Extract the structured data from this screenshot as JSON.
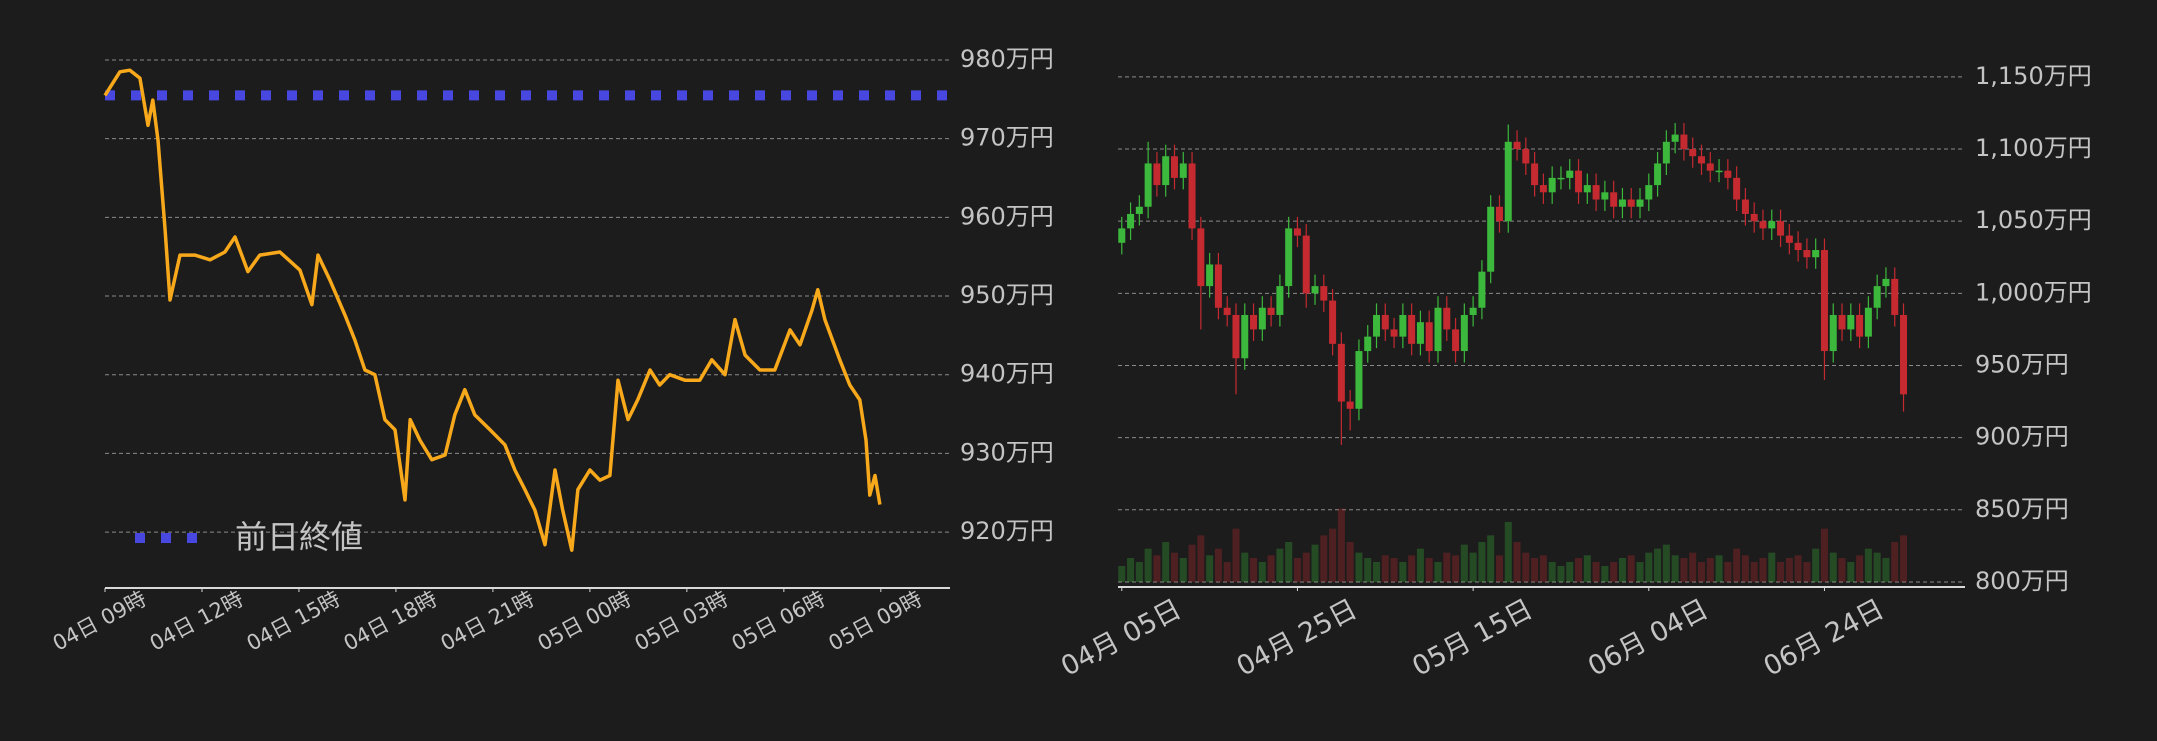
{
  "chart_data": [
    {
      "type": "line",
      "color": "#f7a81b",
      "x": [
        0,
        0.46,
        0.77,
        1.08,
        1.33,
        1.48,
        1.64,
        1.86,
        2.01,
        2.32,
        2.78,
        3.25,
        3.71,
        4.02,
        4.42,
        4.79,
        5.41,
        6.03,
        6.4,
        6.59,
        6.96,
        7.42,
        7.73,
        8.04,
        8.35,
        8.66,
        8.97,
        9.28,
        9.44,
        9.74,
        10.11,
        10.52,
        10.82,
        11.13,
        11.44,
        11.91,
        12.37,
        12.68,
        12.99,
        13.3,
        13.61,
        13.92,
        14.16,
        14.44,
        14.63,
        15,
        15.31,
        15.62,
        15.87,
        16.18,
        16.48,
        16.86,
        17.16,
        17.47,
        17.94,
        18.4,
        18.77,
        19.18,
        19.49,
        19.8,
        20.26,
        20.72,
        21.19,
        21.5,
        21.87,
        22.05,
        22.27,
        22.73,
        23.04,
        23.35,
        23.54,
        23.66,
        23.82,
        23.97
      ],
      "values": [
        975.5,
        978.5,
        978.7,
        977.7,
        971.7,
        974.9,
        969.8,
        958.4,
        949.5,
        955.2,
        955.2,
        954.6,
        955.6,
        957.5,
        953.1,
        955.2,
        955.6,
        953.3,
        948.9,
        955.2,
        952,
        947.6,
        944.4,
        940.6,
        940,
        934.3,
        933,
        924.1,
        934.3,
        931.7,
        929.2,
        929.8,
        934.9,
        938.1,
        934.9,
        933,
        931.1,
        927.9,
        925.4,
        922.8,
        918.4,
        927.9,
        922.8,
        917.7,
        925.4,
        927.9,
        926.6,
        927.2,
        939.3,
        934.3,
        936.8,
        940.6,
        938.7,
        940,
        939.3,
        939.3,
        941.9,
        940,
        947,
        942.5,
        940.6,
        940.6,
        945.7,
        943.8,
        948.2,
        950.8,
        947,
        941.9,
        938.7,
        936.8,
        931.7,
        924.7,
        927.2,
        923.5
      ],
      "reference": {
        "label": "前日終値",
        "value": 975.5,
        "color": "#4848e0"
      },
      "xlim": [
        0,
        26.14
      ],
      "xticks": [
        {
          "value": 0,
          "label": "04日 09時"
        },
        {
          "value": 3,
          "label": "04日 12時"
        },
        {
          "value": 6,
          "label": "04日 15時"
        },
        {
          "value": 9,
          "label": "04日 18時"
        },
        {
          "value": 12,
          "label": "04日 21時"
        },
        {
          "value": 15,
          "label": "05日 00時"
        },
        {
          "value": 18,
          "label": "05日 03時"
        },
        {
          "value": 21,
          "label": "05日 06時"
        },
        {
          "value": 24,
          "label": "05日 09時"
        }
      ],
      "ylim": [
        912.9,
        981.9
      ],
      "yticks": [
        {
          "value": 920,
          "label": "920万円"
        },
        {
          "value": 930,
          "label": "930万円"
        },
        {
          "value": 940,
          "label": "940万円"
        },
        {
          "value": 950,
          "label": "950万円"
        },
        {
          "value": 960,
          "label": "960万円"
        },
        {
          "value": 970,
          "label": "970万円"
        },
        {
          "value": 980,
          "label": "980万円"
        }
      ],
      "grid": true
    },
    {
      "type": "candlestick",
      "up_color": "#3cb83c",
      "down_color": "#c42a30",
      "x": [
        "04-05",
        "04-06",
        "04-07",
        "04-08",
        "04-09",
        "04-10",
        "04-11",
        "04-12",
        "04-13",
        "04-14",
        "04-15",
        "04-16",
        "04-17",
        "04-18",
        "04-19",
        "04-20",
        "04-21",
        "04-22",
        "04-23",
        "04-24",
        "04-25",
        "04-26",
        "04-27",
        "04-28",
        "04-29",
        "04-30",
        "05-01",
        "05-02",
        "05-03",
        "05-04",
        "05-05",
        "05-06",
        "05-07",
        "05-08",
        "05-09",
        "05-10",
        "05-11",
        "05-12",
        "05-13",
        "05-14",
        "05-15",
        "05-16",
        "05-17",
        "05-18",
        "05-19",
        "05-20",
        "05-21",
        "05-22",
        "05-23",
        "05-24",
        "05-25",
        "05-26",
        "05-27",
        "05-28",
        "05-29",
        "05-30",
        "05-31",
        "06-01",
        "06-02",
        "06-03",
        "06-04",
        "06-05",
        "06-06",
        "06-07",
        "06-08",
        "06-09",
        "06-10",
        "06-11",
        "06-12",
        "06-13",
        "06-14",
        "06-15",
        "06-16",
        "06-17",
        "06-18",
        "06-19",
        "06-20",
        "06-21",
        "06-22",
        "06-23",
        "06-24",
        "06-25",
        "06-26",
        "06-27",
        "06-28",
        "06-29",
        "06-30",
        "07-01",
        "07-02",
        "07-03"
      ],
      "open": [
        1035,
        1045,
        1055,
        1060,
        1090,
        1075,
        1095,
        1080,
        1090,
        1045,
        1005,
        1020,
        990,
        985,
        955,
        985,
        975,
        990,
        985,
        1005,
        1045,
        1040,
        1000,
        1005,
        995,
        965,
        925,
        920,
        960,
        970,
        985,
        975,
        970,
        985,
        965,
        980,
        960,
        990,
        975,
        960,
        985,
        990,
        1015,
        1060,
        1050,
        1105,
        1100,
        1090,
        1075,
        1070,
        1080,
        1080,
        1085,
        1070,
        1075,
        1065,
        1070,
        1060,
        1065,
        1060,
        1065,
        1075,
        1090,
        1105,
        1110,
        1100,
        1095,
        1090,
        1085,
        1085,
        1080,
        1065,
        1055,
        1050,
        1045,
        1050,
        1040,
        1035,
        1030,
        1025,
        1030,
        960,
        985,
        975,
        985,
        970,
        990,
        1005,
        1010,
        985
      ],
      "high": [
        1053,
        1063,
        1068,
        1105,
        1098,
        1103,
        1103,
        1098,
        1098,
        1053,
        1028,
        1028,
        998,
        993,
        993,
        993,
        998,
        998,
        1013,
        1053,
        1053,
        1048,
        1013,
        1013,
        1003,
        973,
        933,
        968,
        978,
        993,
        993,
        983,
        993,
        993,
        988,
        988,
        998,
        998,
        983,
        993,
        998,
        1023,
        1068,
        1068,
        1117,
        1113,
        1108,
        1098,
        1083,
        1088,
        1088,
        1093,
        1093,
        1083,
        1083,
        1078,
        1078,
        1073,
        1073,
        1073,
        1083,
        1098,
        1113,
        1118,
        1118,
        1108,
        1103,
        1098,
        1093,
        1093,
        1088,
        1073,
        1063,
        1058,
        1058,
        1058,
        1048,
        1043,
        1038,
        1038,
        1038,
        993,
        993,
        993,
        993,
        998,
        1013,
        1018,
        1018,
        993
      ],
      "low": [
        1027,
        1037,
        1047,
        1052,
        1067,
        1067,
        1072,
        1072,
        1037,
        975,
        997,
        982,
        977,
        930,
        947,
        967,
        967,
        977,
        977,
        997,
        1032,
        990,
        992,
        987,
        957,
        895,
        905,
        912,
        952,
        962,
        967,
        962,
        962,
        957,
        957,
        952,
        952,
        967,
        952,
        952,
        977,
        982,
        1007,
        1042,
        1042,
        1092,
        1082,
        1067,
        1062,
        1062,
        1072,
        1072,
        1062,
        1062,
        1057,
        1057,
        1052,
        1052,
        1052,
        1052,
        1057,
        1067,
        1082,
        1097,
        1092,
        1087,
        1082,
        1077,
        1077,
        1072,
        1057,
        1047,
        1042,
        1037,
        1037,
        1032,
        1027,
        1022,
        1017,
        1017,
        940,
        952,
        967,
        967,
        962,
        962,
        982,
        997,
        977,
        918
      ],
      "close": [
        1045,
        1055,
        1060,
        1090,
        1075,
        1095,
        1080,
        1090,
        1045,
        1005,
        1020,
        990,
        985,
        955,
        985,
        975,
        990,
        985,
        1005,
        1045,
        1040,
        1000,
        1005,
        995,
        965,
        925,
        920,
        960,
        970,
        985,
        975,
        970,
        985,
        965,
        980,
        960,
        990,
        975,
        960,
        985,
        990,
        1015,
        1060,
        1050,
        1105,
        1100,
        1090,
        1075,
        1070,
        1080,
        1080,
        1085,
        1070,
        1075,
        1065,
        1070,
        1060,
        1065,
        1060,
        1065,
        1075,
        1090,
        1105,
        1110,
        1100,
        1095,
        1090,
        1085,
        1085,
        1080,
        1065,
        1055,
        1050,
        1045,
        1050,
        1040,
        1035,
        1030,
        1025,
        1030,
        960,
        985,
        975,
        985,
        970,
        990,
        1005,
        1010,
        985,
        930
      ],
      "volume": [
        12,
        18,
        15,
        25,
        20,
        30,
        22,
        18,
        28,
        35,
        20,
        25,
        15,
        40,
        22,
        18,
        15,
        20,
        25,
        30,
        18,
        22,
        28,
        35,
        40,
        55,
        30,
        22,
        18,
        15,
        20,
        18,
        15,
        20,
        25,
        18,
        15,
        22,
        20,
        28,
        22,
        30,
        35,
        20,
        45,
        30,
        22,
        18,
        20,
        15,
        12,
        15,
        18,
        20,
        15,
        12,
        15,
        18,
        20,
        15,
        22,
        25,
        28,
        20,
        18,
        22,
        15,
        18,
        20,
        15,
        25,
        20,
        15,
        18,
        22,
        15,
        18,
        20,
        15,
        25,
        40,
        22,
        18,
        15,
        20,
        25,
        22,
        18,
        30,
        35
      ],
      "vlim": [
        0,
        60
      ],
      "xlim": [
        "04-04",
        "07-10"
      ],
      "xticks": [
        {
          "value": "04-05",
          "label": "04月 05日"
        },
        {
          "value": "04-25",
          "label": "04月 25日"
        },
        {
          "value": "05-15",
          "label": "05月 15日"
        },
        {
          "value": "06-04",
          "label": "06月 04日"
        },
        {
          "value": "06-24",
          "label": "06月 24日"
        }
      ],
      "ylim": [
        796.5,
        1170
      ],
      "yticks": [
        {
          "value": 800,
          "label": "800万円"
        },
        {
          "value": 850,
          "label": "850万円"
        },
        {
          "value": 900,
          "label": "900万円"
        },
        {
          "value": 950,
          "label": "950万円"
        },
        {
          "value": 1000,
          "label": "1,000万円"
        },
        {
          "value": 1050,
          "label": "1,050万円"
        },
        {
          "value": 1100,
          "label": "1,100万円"
        },
        {
          "value": 1150,
          "label": "1,150万円"
        }
      ],
      "grid": true
    }
  ]
}
